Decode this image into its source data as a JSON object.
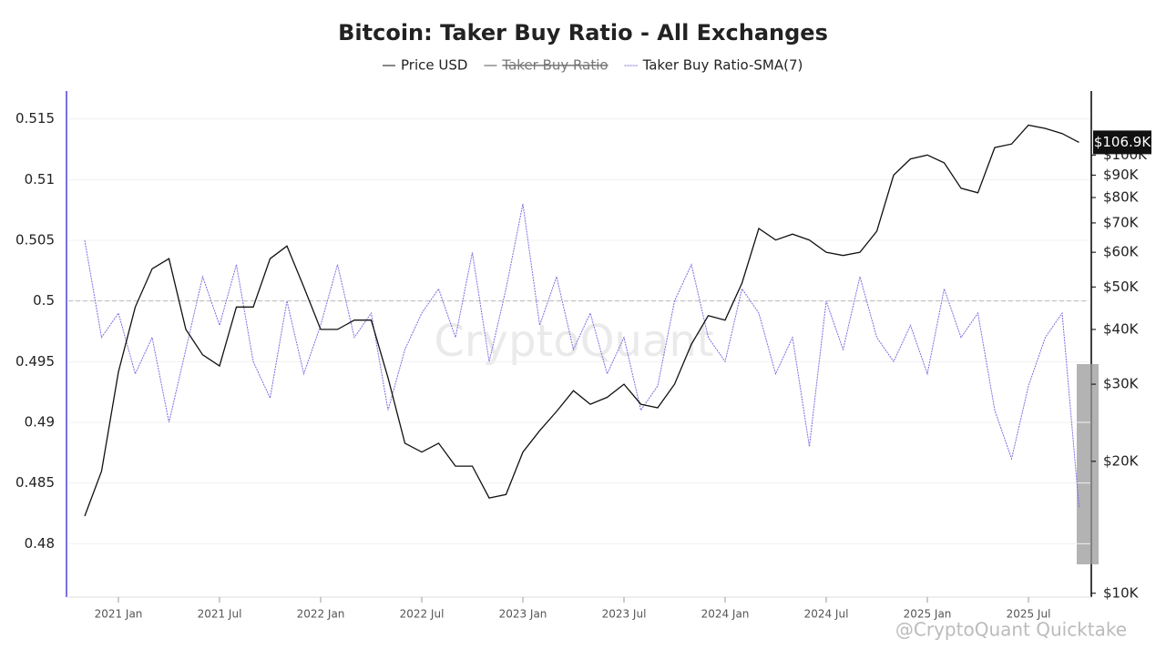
{
  "chart_data": {
    "type": "line",
    "title": "Bitcoin: Taker Buy Ratio - All Exchanges",
    "legend_hidden": [
      "Taker Buy Ratio"
    ],
    "x": [
      "2020-11",
      "2020-12",
      "2021-01",
      "2021-02",
      "2021-03",
      "2021-04",
      "2021-05",
      "2021-06",
      "2021-07",
      "2021-08",
      "2021-09",
      "2021-10",
      "2021-11",
      "2021-12",
      "2022-01",
      "2022-02",
      "2022-03",
      "2022-04",
      "2022-05",
      "2022-06",
      "2022-07",
      "2022-08",
      "2022-09",
      "2022-10",
      "2022-11",
      "2022-12",
      "2023-01",
      "2023-02",
      "2023-03",
      "2023-04",
      "2023-05",
      "2023-06",
      "2023-07",
      "2023-08",
      "2023-09",
      "2023-10",
      "2023-11",
      "2023-12",
      "2024-01",
      "2024-02",
      "2024-03",
      "2024-04",
      "2024-05",
      "2024-06",
      "2024-07",
      "2024-08",
      "2024-09",
      "2024-10",
      "2024-11",
      "2024-12",
      "2025-01",
      "2025-02",
      "2025-03",
      "2025-04",
      "2025-05",
      "2025-06",
      "2025-07",
      "2025-08",
      "2025-09",
      "2025-10"
    ],
    "xlim": [
      "2020-10",
      "2025-11"
    ],
    "xticks": [
      {
        "value": "2021-01",
        "label": "2021 Jan"
      },
      {
        "value": "2021-07",
        "label": "2021 Jul"
      },
      {
        "value": "2022-01",
        "label": "2022 Jan"
      },
      {
        "value": "2022-07",
        "label": "2022 Jul"
      },
      {
        "value": "2023-01",
        "label": "2023 Jan"
      },
      {
        "value": "2023-07",
        "label": "2023 Jul"
      },
      {
        "value": "2024-01",
        "label": "2024 Jan"
      },
      {
        "value": "2024-07",
        "label": "2024 Jul"
      },
      {
        "value": "2025-01",
        "label": "2025 Jan"
      },
      {
        "value": "2025-07",
        "label": "2025 Jul"
      }
    ],
    "ylim": [
      0.4756,
      0.5173
    ],
    "yticks": [
      0.48,
      0.485,
      0.49,
      0.495,
      0.5,
      0.505,
      0.51,
      0.515
    ],
    "y2lim": [
      9800,
      140000
    ],
    "y2_log": true,
    "y2ticks": [
      {
        "value": 10000,
        "label": "$10K"
      },
      {
        "value": 20000,
        "label": "$20K"
      },
      {
        "value": 30000,
        "label": "$30K"
      },
      {
        "value": 40000,
        "label": "$40K"
      },
      {
        "value": 50000,
        "label": "$50K"
      },
      {
        "value": 60000,
        "label": "$60K"
      },
      {
        "value": 70000,
        "label": "$70K"
      },
      {
        "value": 80000,
        "label": "$80K"
      },
      {
        "value": 90000,
        "label": "$90K"
      },
      {
        "value": 100000,
        "label": "$100K"
      }
    ],
    "reference_line": 0.5,
    "grid": true,
    "series": [
      {
        "name": "Price USD",
        "color": "#111111",
        "axis": "y2",
        "values": [
          15000,
          19000,
          32000,
          45000,
          55000,
          58000,
          40000,
          35000,
          33000,
          45000,
          45000,
          58000,
          62000,
          50000,
          40000,
          40000,
          42000,
          42000,
          31000,
          22000,
          21000,
          22000,
          19500,
          19500,
          16500,
          16800,
          21000,
          23500,
          26000,
          29000,
          27000,
          28000,
          30000,
          27000,
          26500,
          30000,
          37000,
          43000,
          42000,
          51000,
          68000,
          64000,
          66000,
          64000,
          60000,
          59000,
          60000,
          67000,
          90000,
          98000,
          100000,
          96000,
          84000,
          82000,
          104000,
          106000,
          117000,
          115000,
          112000,
          106900
        ]
      },
      {
        "name": "Taker Buy Ratio-SMA(7)",
        "color": "#7b6fe0",
        "values": [
          0.505,
          0.497,
          0.499,
          0.494,
          0.497,
          0.49,
          0.496,
          0.502,
          0.498,
          0.503,
          0.495,
          0.492,
          0.5,
          0.494,
          0.498,
          0.503,
          0.497,
          0.499,
          0.491,
          0.496,
          0.499,
          0.501,
          0.497,
          0.504,
          0.495,
          0.501,
          0.508,
          0.498,
          0.502,
          0.496,
          0.499,
          0.494,
          0.497,
          0.491,
          0.493,
          0.5,
          0.503,
          0.497,
          0.495,
          0.501,
          0.499,
          0.494,
          0.497,
          0.488,
          0.5,
          0.496,
          0.502,
          0.497,
          0.495,
          0.498,
          0.494,
          0.501,
          0.497,
          0.499,
          0.491,
          0.487,
          0.493,
          0.497,
          0.499,
          0.483
        ]
      }
    ],
    "price_label": "$106.9K",
    "watermark": "CryptoQuant",
    "credit": "@CryptoQuant Quicktake"
  }
}
